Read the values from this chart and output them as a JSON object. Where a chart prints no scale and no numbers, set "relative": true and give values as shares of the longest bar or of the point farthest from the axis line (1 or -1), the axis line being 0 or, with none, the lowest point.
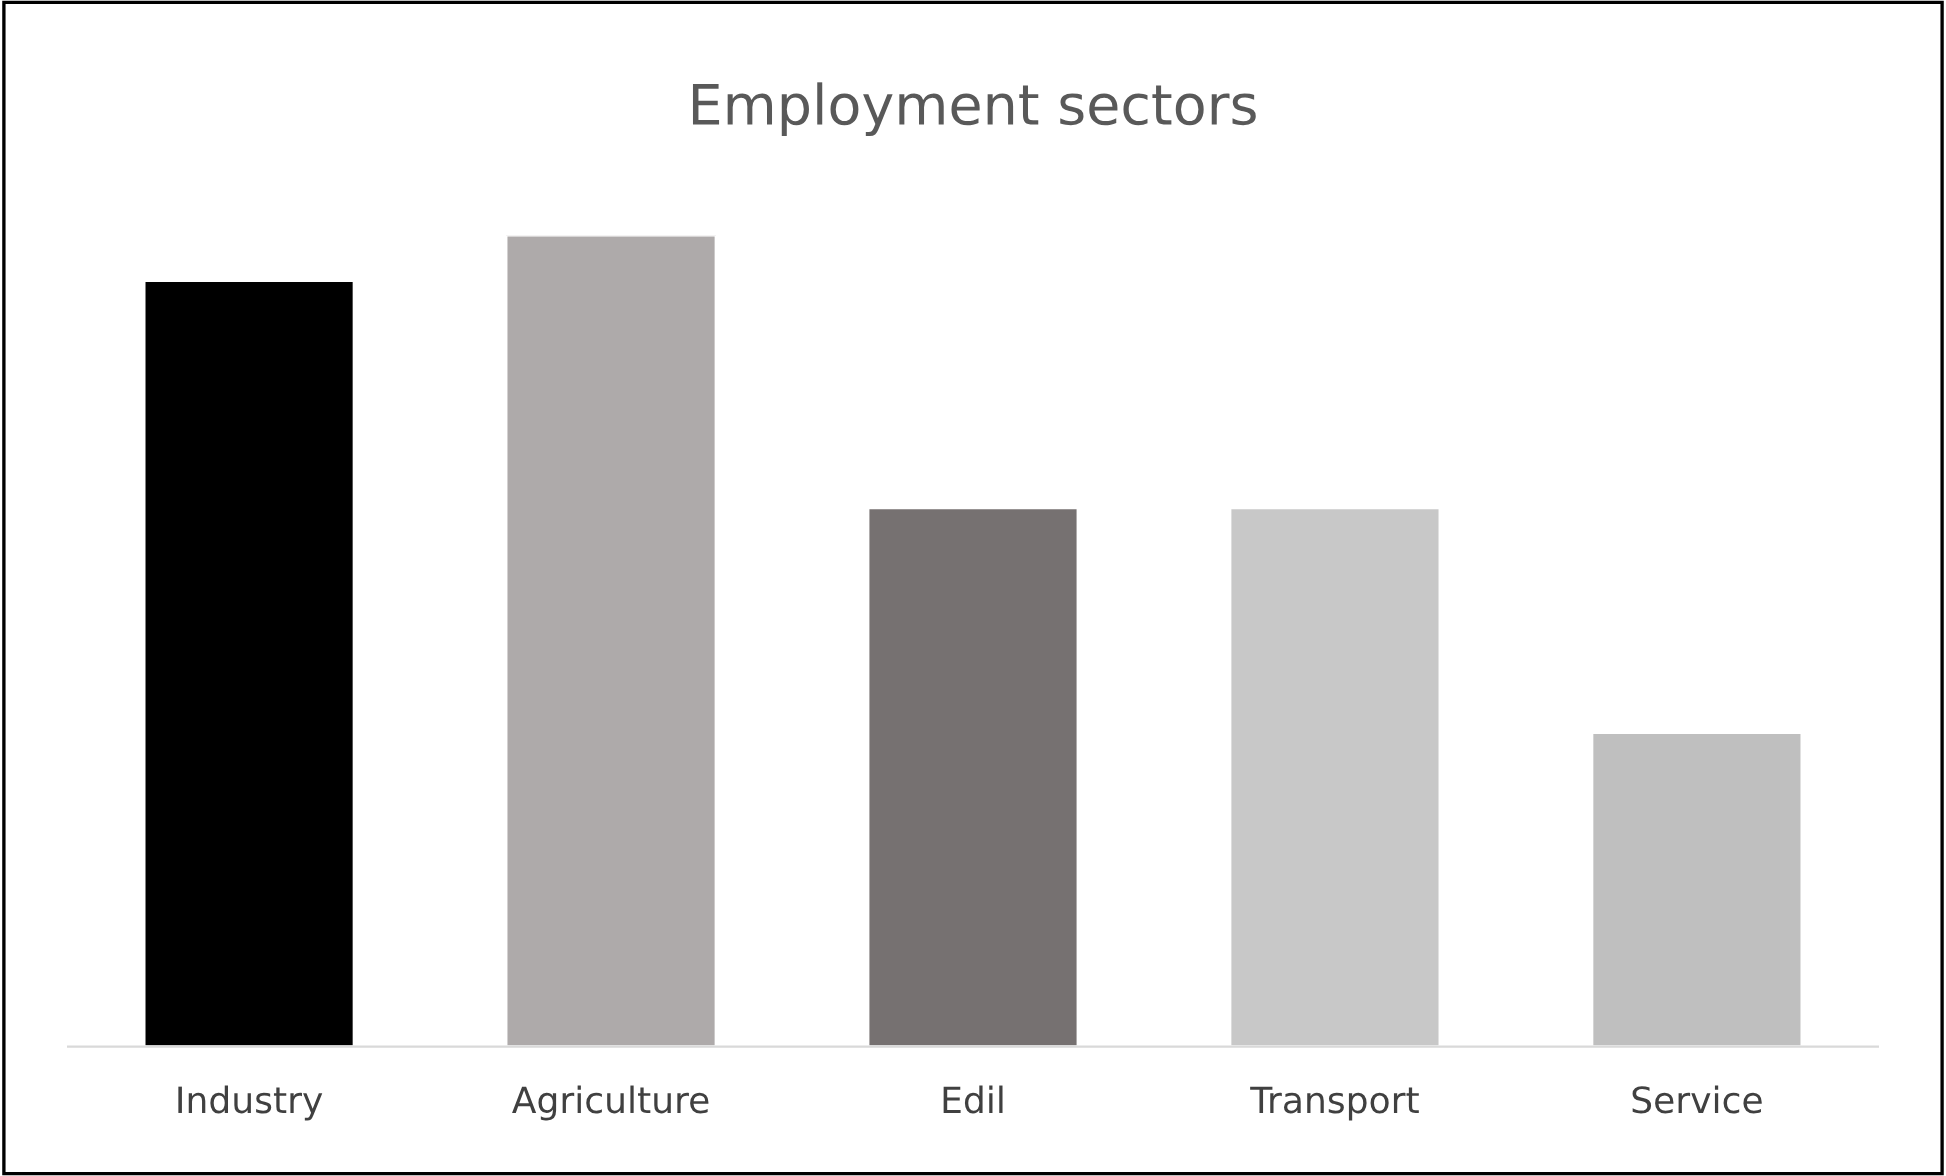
{
  "chart_data": {
    "type": "bar",
    "title": "Employment sectors",
    "relative": true,
    "categories": [
      "Industry",
      "Agriculture",
      "Edil",
      "Transport",
      "Service"
    ],
    "values": [
      0.944,
      1,
      0.664,
      0.664,
      0.387
    ],
    "colors": [
      "#000000",
      "#aeaaaa",
      "#767171",
      "#c8c8c8",
      "#bfbfbf"
    ],
    "grid": false,
    "legend": false
  }
}
